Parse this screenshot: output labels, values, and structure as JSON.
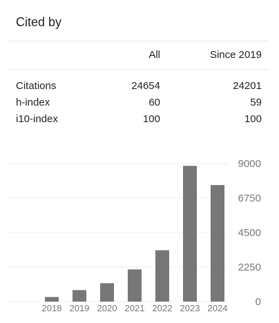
{
  "card": {
    "title": "Cited by"
  },
  "table": {
    "col_all": "All",
    "col_since": "Since 2019",
    "rows": [
      {
        "label": "Citations",
        "all": "24654",
        "since": "24201"
      },
      {
        "label": "h-index",
        "all": "60",
        "since": "59"
      },
      {
        "label": "i10-index",
        "all": "100",
        "since": "100"
      }
    ]
  },
  "colors": {
    "bar": "#777777",
    "text": "#222222",
    "muted": "#777777",
    "grid": "#eeeeee"
  },
  "chart_data": {
    "type": "bar",
    "categories": [
      "2018",
      "2019",
      "2020",
      "2021",
      "2022",
      "2023",
      "2024"
    ],
    "values": [
      300,
      750,
      1200,
      2100,
      3350,
      8850,
      7600
    ],
    "yticks": [
      "9000",
      "6750",
      "4500",
      "2250",
      "0"
    ],
    "ylim": [
      0,
      9000
    ],
    "grid": true,
    "yaxis_side": "right"
  }
}
